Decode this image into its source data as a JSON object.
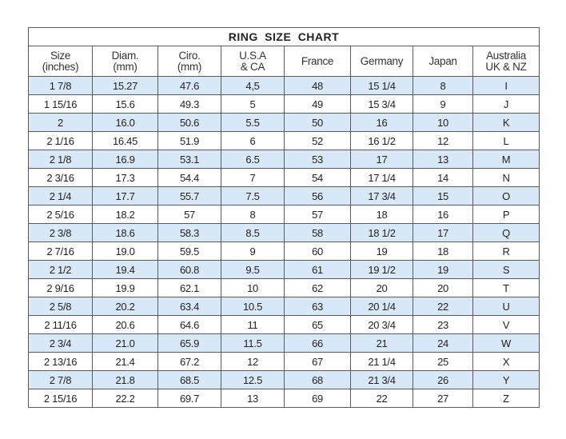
{
  "title": "RING SIZE CHART",
  "columns": [
    [
      "Size",
      "(inches)"
    ],
    [
      "Diam.",
      "(mm)"
    ],
    [
      "Ciro.",
      "(mm)"
    ],
    [
      "U.S.A",
      "& CA"
    ],
    [
      "France"
    ],
    [
      "Germany"
    ],
    [
      "Japan"
    ],
    [
      "Australia",
      "UK & NZ"
    ]
  ],
  "rows": [
    [
      "1 7/8",
      "15.27",
      "47.6",
      "4,5",
      "48",
      "15 1/4",
      "8",
      "I"
    ],
    [
      "1 15/16",
      "15.6",
      "49.3",
      "5",
      "49",
      "15 3/4",
      "9",
      "J"
    ],
    [
      "2",
      "16.0",
      "50.6",
      "5.5",
      "50",
      "16",
      "10",
      "K"
    ],
    [
      "2 1/16",
      "16.45",
      "51.9",
      "6",
      "52",
      "16 1/2",
      "12",
      "L"
    ],
    [
      "2 1/8",
      "16.9",
      "53.1",
      "6.5",
      "53",
      "17",
      "13",
      "M"
    ],
    [
      "2 3/16",
      "17.3",
      "54.4",
      "7",
      "54",
      "17 1/4",
      "14",
      "N"
    ],
    [
      "2 1/4",
      "17.7",
      "55.7",
      "7.5",
      "56",
      "17 3/4",
      "15",
      "O"
    ],
    [
      "2 5/16",
      "18.2",
      "57",
      "8",
      "57",
      "18",
      "16",
      "P"
    ],
    [
      "2 3/8",
      "18.6",
      "58.3",
      "8.5",
      "58",
      "18 1/2",
      "17",
      "Q"
    ],
    [
      "2 7/16",
      "19.0",
      "59.5",
      "9",
      "60",
      "19",
      "18",
      "R"
    ],
    [
      "2 1/2",
      "19.4",
      "60.8",
      "9.5",
      "61",
      "19 1/2",
      "19",
      "S"
    ],
    [
      "2 9/16",
      "19.9",
      "62.1",
      "10",
      "62",
      "20",
      "20",
      "T"
    ],
    [
      "2 5/8",
      "20.2",
      "63.4",
      "10.5",
      "63",
      "20 1/4",
      "22",
      "U"
    ],
    [
      "2 11/16",
      "20.6",
      "64.6",
      "11",
      "65",
      "20 3/4",
      "23",
      "V"
    ],
    [
      "2 3/4",
      "21.0",
      "65.9",
      "11.5",
      "66",
      "21",
      "24",
      "W"
    ],
    [
      "2 13/16",
      "21.4",
      "67.2",
      "12",
      "67",
      "21 1/4",
      "25",
      "X"
    ],
    [
      "2 7/8",
      "21.8",
      "68.5",
      "12.5",
      "68",
      "21 3/4",
      "26",
      "Y"
    ],
    [
      "2 15/16",
      "22.2",
      "69.7",
      "13",
      "69",
      "22",
      "27",
      "Z"
    ]
  ],
  "colors": {
    "alt_row": "#d8e8f8",
    "border": "#5a5a5a"
  }
}
